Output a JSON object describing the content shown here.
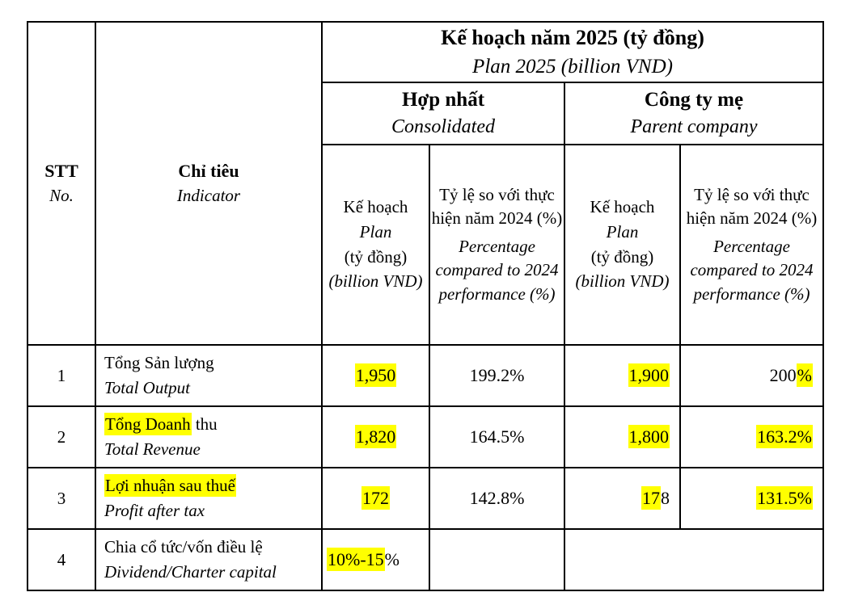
{
  "highlight_color": "#ffff00",
  "header": {
    "no_vi": "STT",
    "no_en": "No.",
    "indicator_vi": "Chỉ tiêu",
    "indicator_en": "Indicator",
    "group_title_vi": "Kế hoạch năm 2025 (tỷ đồng)",
    "group_title_en": "Plan 2025 (billion VND)",
    "consolidated_vi": "Hợp nhất",
    "consolidated_en": "Consolidated",
    "parent_vi": "Công ty mẹ",
    "parent_en": "Parent company",
    "plan_vi": "Kế hoạch",
    "plan_en": "Plan",
    "plan_unit_vi": "(tỷ đồng)",
    "plan_unit_en": "(billion VND)",
    "ratio_vi": "Tỷ lệ so với thực hiện năm 2024 (%)",
    "ratio_en": "Percentage compared to 2024 performance (%)"
  },
  "rows": [
    {
      "no": "1",
      "indicator_vi": [
        {
          "t": "Tổng Sản lượng",
          "hl": false
        }
      ],
      "indicator_en": "Total Output",
      "cells": [
        {
          "name": "consolidated-plan",
          "segments": [
            {
              "t": "1,950",
              "hl": true
            }
          ],
          "align": "center"
        },
        {
          "name": "consolidated-ratio",
          "segments": [
            {
              "t": "199.2%",
              "hl": false
            }
          ],
          "align": "center"
        },
        {
          "name": "parent-plan",
          "segments": [
            {
              "t": "1,900",
              "hl": true
            }
          ],
          "align": "right"
        },
        {
          "name": "parent-ratio",
          "segments": [
            {
              "t": "200",
              "hl": false
            },
            {
              "t": "%",
              "hl": true
            }
          ],
          "align": "right"
        }
      ]
    },
    {
      "no": "2",
      "indicator_vi": [
        {
          "t": "Tổng Doanh",
          "hl": true
        },
        {
          "t": " thu",
          "hl": false
        }
      ],
      "indicator_en": "Total Revenue",
      "cells": [
        {
          "name": "consolidated-plan",
          "segments": [
            {
              "t": "1,820",
              "hl": true
            }
          ],
          "align": "center"
        },
        {
          "name": "consolidated-ratio",
          "segments": [
            {
              "t": "164.5%",
              "hl": false
            }
          ],
          "align": "center"
        },
        {
          "name": "parent-plan",
          "segments": [
            {
              "t": "1,800",
              "hl": true
            }
          ],
          "align": "right"
        },
        {
          "name": "parent-ratio",
          "segments": [
            {
              "t": "163.2%",
              "hl": true
            }
          ],
          "align": "right"
        }
      ]
    },
    {
      "no": "3",
      "indicator_vi": [
        {
          "t": "Lợi nhuận sau thuế",
          "hl": true
        }
      ],
      "indicator_en": "Profit after tax",
      "cells": [
        {
          "name": "consolidated-plan",
          "segments": [
            {
              "t": "172",
              "hl": true
            }
          ],
          "align": "center"
        },
        {
          "name": "consolidated-ratio",
          "segments": [
            {
              "t": "142.8%",
              "hl": false
            }
          ],
          "align": "center"
        },
        {
          "name": "parent-plan",
          "segments": [
            {
              "t": "17",
              "hl": true
            },
            {
              "t": "8",
              "hl": false
            }
          ],
          "align": "right"
        },
        {
          "name": "parent-ratio",
          "segments": [
            {
              "t": "131.5%",
              "hl": true
            }
          ],
          "align": "right"
        }
      ]
    },
    {
      "no": "4",
      "indicator_vi": [
        {
          "t": "Chia cổ tức/vốn điều lệ",
          "hl": false
        }
      ],
      "indicator_en": "Dividend/Charter capital",
      "cells": [
        {
          "name": "consolidated-plan",
          "segments": [
            {
              "t": "10%-15",
              "hl": true
            },
            {
              "t": "%",
              "hl": false
            }
          ],
          "align": "left"
        },
        {
          "name": "consolidated-ratio",
          "segments": [],
          "align": "center"
        },
        {
          "name": "parent-merged",
          "segments": [],
          "align": "right",
          "colspan": 2
        }
      ]
    }
  ]
}
